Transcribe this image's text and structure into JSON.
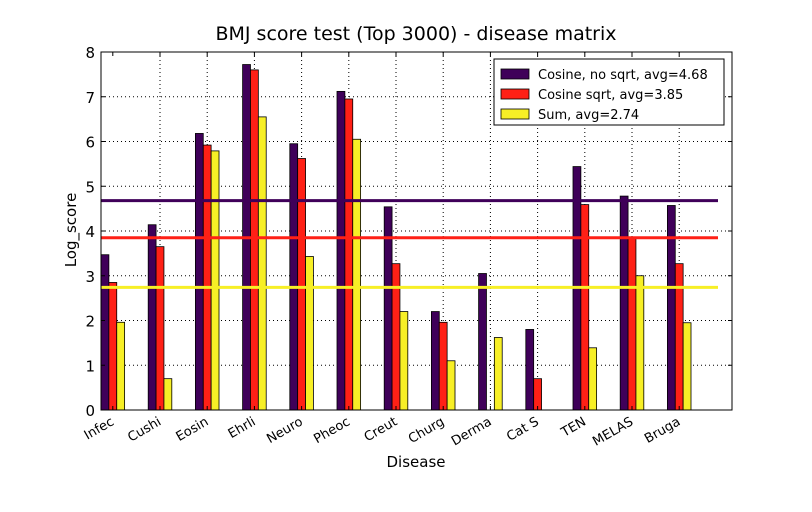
{
  "chart_data": {
    "type": "bar",
    "title": "BMJ score test (Top 3000) - disease matrix",
    "xlabel": "Disease",
    "ylabel": "Log_score",
    "ylim": [
      0,
      8
    ],
    "yticks": [
      "0",
      "1",
      "2",
      "3",
      "4",
      "5",
      "6",
      "7",
      "8"
    ],
    "grid": true,
    "legend_position": "top-right",
    "categories": [
      "Infec",
      "Cushi",
      "Eosin",
      "Ehrli",
      "Neuro",
      "Pheoc",
      "Creut",
      "Churg",
      "Derma",
      "Cat S",
      "TEN",
      "MELAS",
      "Bruga"
    ],
    "series": [
      {
        "name": "Cosine, no sqrt, avg=4.68",
        "color": "#3f0059",
        "avg": 4.68,
        "values": [
          3.47,
          4.14,
          6.18,
          7.72,
          5.95,
          7.12,
          4.54,
          2.2,
          3.05,
          1.8,
          5.44,
          4.78,
          4.57
        ]
      },
      {
        "name": "Cosine sqrt, avg=3.85",
        "color": "#ff2016",
        "avg": 3.85,
        "values": [
          2.85,
          3.65,
          5.92,
          7.6,
          5.62,
          6.95,
          3.27,
          1.96,
          0.0,
          0.7,
          4.59,
          3.85,
          3.27
        ]
      },
      {
        "name": "Sum, avg=2.74",
        "color": "#f7ef26",
        "avg": 2.74,
        "values": [
          1.96,
          0.7,
          5.79,
          6.55,
          3.43,
          6.05,
          2.2,
          1.1,
          1.62,
          0.0,
          1.39,
          3.0,
          1.95
        ]
      }
    ]
  }
}
